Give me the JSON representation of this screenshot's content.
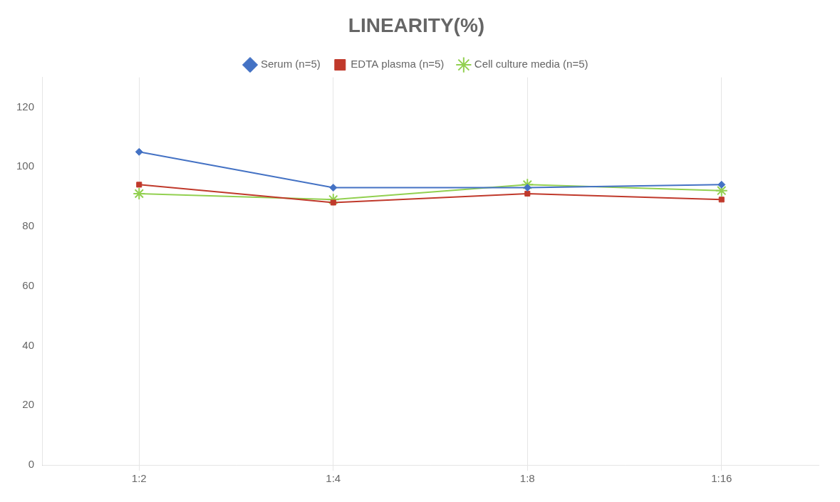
{
  "chart_data": {
    "type": "line",
    "title": "LINEARITY(%)",
    "categories": [
      "1:2",
      "1:4",
      "1:8",
      "1:16"
    ],
    "series": [
      {
        "name": "Serum (n=5)",
        "color": "#4472C4",
        "marker": "diamond",
        "values": [
          105,
          93,
          93,
          94
        ]
      },
      {
        "name": "EDTA plasma (n=5)",
        "color": "#C0392B",
        "marker": "square",
        "values": [
          94,
          88,
          91,
          89
        ]
      },
      {
        "name": "Cell culture media (n=5)",
        "color": "#92D050",
        "marker": "star",
        "values": [
          91,
          89,
          94,
          92
        ]
      }
    ],
    "ylim": [
      0,
      130
    ],
    "yticks": [
      0,
      20,
      40,
      60,
      80,
      100,
      120
    ],
    "grid": "x",
    "legend": "top"
  }
}
